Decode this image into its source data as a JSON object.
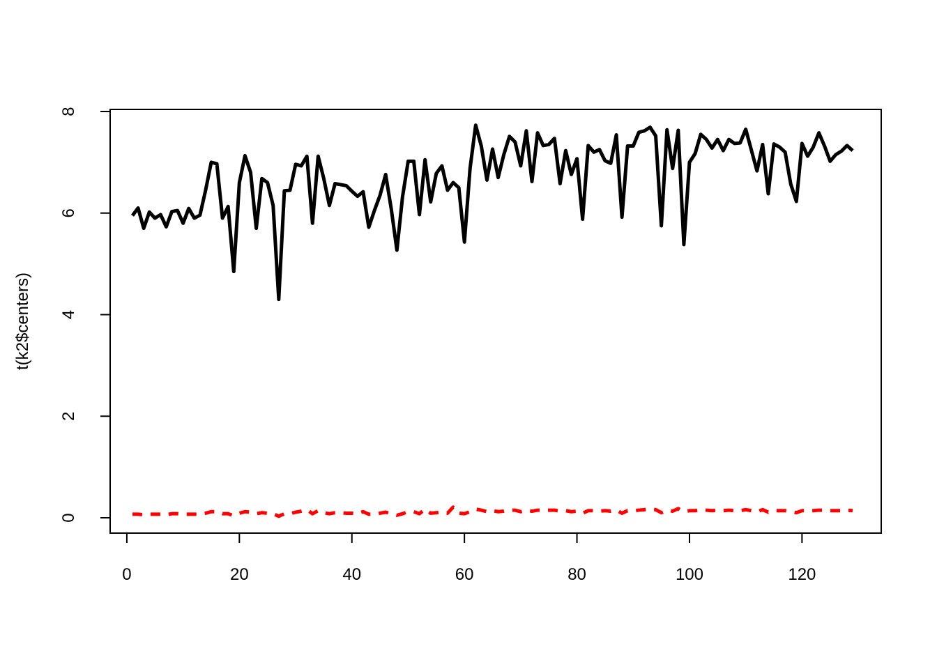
{
  "chart_data": {
    "type": "line",
    "title": "",
    "xlabel": "",
    "ylabel": "t(k2$centers)",
    "xlim": [
      1,
      129
    ],
    "ylim": [
      0,
      8
    ],
    "x_ticks": [
      0,
      20,
      40,
      60,
      80,
      100,
      120
    ],
    "y_ticks": [
      0,
      2,
      4,
      6,
      8
    ],
    "grid": false,
    "legend": "none",
    "series": [
      {
        "color": "#000000",
        "line_style": "solid",
        "values": [
          5.95,
          6.1,
          5.7,
          6.02,
          5.9,
          5.97,
          5.73,
          6.03,
          6.05,
          5.8,
          6.09,
          5.9,
          5.96,
          6.45,
          7.0,
          6.97,
          5.9,
          6.13,
          4.85,
          6.6,
          7.13,
          6.8,
          5.7,
          6.68,
          6.6,
          6.15,
          4.3,
          6.44,
          6.45,
          6.96,
          6.93,
          7.12,
          5.8,
          7.12,
          6.68,
          6.15,
          6.58,
          6.56,
          6.54,
          6.43,
          6.33,
          6.42,
          5.72,
          6.05,
          6.35,
          6.76,
          6.08,
          5.27,
          6.32,
          7.02,
          7.02,
          5.97,
          7.05,
          6.22,
          6.78,
          6.93,
          6.45,
          6.6,
          6.5,
          5.43,
          6.88,
          7.73,
          7.32,
          6.65,
          7.26,
          6.7,
          7.15,
          7.51,
          7.4,
          6.93,
          7.62,
          6.62,
          7.58,
          7.33,
          7.35,
          7.47,
          6.58,
          7.23,
          6.76,
          7.07,
          5.88,
          7.33,
          7.2,
          7.25,
          7.03,
          6.98,
          7.54,
          5.92,
          7.32,
          7.32,
          7.59,
          7.62,
          7.69,
          7.52,
          5.75,
          7.64,
          6.88,
          7.63,
          5.38,
          7.0,
          7.17,
          7.55,
          7.45,
          7.28,
          7.45,
          7.23,
          7.45,
          7.37,
          7.38,
          7.65,
          7.24,
          6.83,
          7.35,
          6.38,
          7.36,
          7.3,
          7.2,
          6.57,
          6.23,
          7.37,
          7.12,
          7.3,
          7.58,
          7.32,
          7.02,
          7.15,
          7.22,
          7.33,
          7.23
        ]
      },
      {
        "color": "#ff0000",
        "line_style": "dashed",
        "values": [
          0.07,
          0.07,
          0.06,
          0.07,
          0.07,
          0.07,
          0.06,
          0.08,
          0.08,
          0.07,
          0.07,
          0.07,
          0.07,
          0.09,
          0.12,
          0.12,
          0.08,
          0.08,
          0.04,
          0.09,
          0.12,
          0.11,
          0.08,
          0.1,
          0.09,
          0.08,
          0.03,
          0.08,
          0.08,
          0.11,
          0.13,
          0.16,
          0.08,
          0.14,
          0.1,
          0.08,
          0.1,
          0.1,
          0.09,
          0.09,
          0.08,
          0.12,
          0.07,
          0.07,
          0.09,
          0.11,
          0.08,
          0.05,
          0.08,
          0.12,
          0.12,
          0.08,
          0.17,
          0.09,
          0.1,
          0.11,
          0.09,
          0.21,
          0.09,
          0.08,
          0.12,
          0.17,
          0.15,
          0.12,
          0.14,
          0.12,
          0.13,
          0.15,
          0.15,
          0.12,
          0.15,
          0.13,
          0.15,
          0.15,
          0.15,
          0.15,
          0.13,
          0.14,
          0.12,
          0.13,
          0.09,
          0.14,
          0.14,
          0.13,
          0.14,
          0.13,
          0.15,
          0.09,
          0.14,
          0.14,
          0.15,
          0.16,
          0.17,
          0.16,
          0.1,
          0.15,
          0.13,
          0.18,
          0.12,
          0.14,
          0.14,
          0.16,
          0.15,
          0.14,
          0.15,
          0.14,
          0.15,
          0.14,
          0.14,
          0.16,
          0.14,
          0.12,
          0.16,
          0.11,
          0.14,
          0.14,
          0.14,
          0.12,
          0.1,
          0.14,
          0.14,
          0.14,
          0.15,
          0.15,
          0.14,
          0.14,
          0.14,
          0.15,
          0.14
        ]
      }
    ]
  }
}
